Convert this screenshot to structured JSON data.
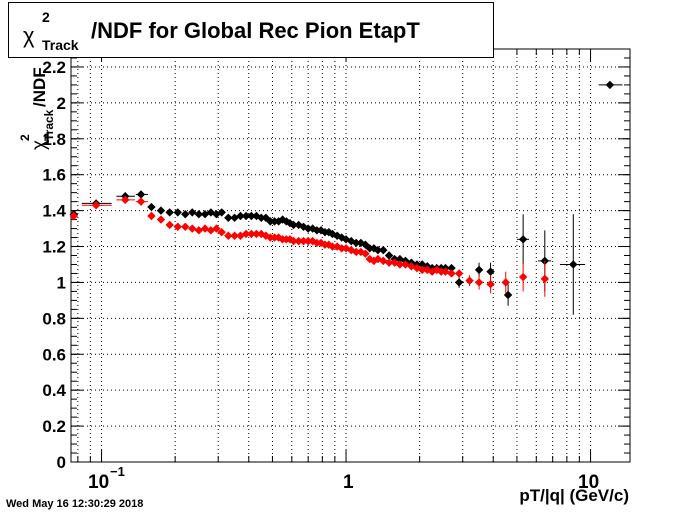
{
  "title": {
    "symbol": "χ",
    "superscript": "2",
    "subscript": "Track",
    "main": "/NDF for Global Rec Pion EtapT"
  },
  "timestamp": "Wed May 16 12:30:29 2018",
  "axes": {
    "x_label": "pT/|q| (GeV/c)",
    "y_label_symbol": "χ",
    "y_label_superscript": "2",
    "y_label_subscript": "Track",
    "y_label_rest": "/NDF",
    "x_tick_labels": [
      "10",
      "−1",
      "1",
      "10"
    ],
    "y_tick_labels": [
      "0",
      "0.2",
      "0.4",
      "0.6",
      "0.8",
      "1",
      "1.2",
      "1.4",
      "1.6",
      "1.8",
      "2",
      "2.2"
    ]
  },
  "colors": {
    "black_series": "#000000",
    "red_series": "#ff0000",
    "grid": "#000000"
  },
  "chart_data": {
    "type": "scatter",
    "x_scale": "log",
    "xlim": [
      0.075,
      14.5
    ],
    "ylim": [
      0,
      2.3
    ],
    "grid": true,
    "x_ticks": [
      0.1,
      1,
      10
    ],
    "y_ticks": [
      0,
      0.2,
      0.4,
      0.6,
      0.8,
      1,
      1.2,
      1.4,
      1.6,
      1.8,
      2,
      2.2
    ],
    "series": [
      {
        "color": "#000000",
        "points": [
          {
            "x": 0.077,
            "y": 1.38,
            "xerr": [
              0.075,
              0.08
            ],
            "yerr": 0.02
          },
          {
            "x": 0.095,
            "y": 1.44,
            "xerr": [
              0.083,
              0.11
            ],
            "yerr": 0.02
          },
          {
            "x": 0.125,
            "y": 1.48,
            "xerr": [
              0.115,
              0.137
            ],
            "yerr": 0.02
          },
          {
            "x": 0.145,
            "y": 1.49,
            "xerr": [
              0.138,
              0.155
            ],
            "yerr": 0.02
          },
          {
            "x": 0.16,
            "y": 1.42
          },
          {
            "x": 0.175,
            "y": 1.4
          },
          {
            "x": 0.19,
            "y": 1.39
          },
          {
            "x": 0.205,
            "y": 1.39
          },
          {
            "x": 0.22,
            "y": 1.38
          },
          {
            "x": 0.235,
            "y": 1.39
          },
          {
            "x": 0.25,
            "y": 1.38
          },
          {
            "x": 0.265,
            "y": 1.38
          },
          {
            "x": 0.28,
            "y": 1.39
          },
          {
            "x": 0.295,
            "y": 1.38
          },
          {
            "x": 0.31,
            "y": 1.39
          },
          {
            "x": 0.33,
            "y": 1.36
          },
          {
            "x": 0.35,
            "y": 1.36
          },
          {
            "x": 0.37,
            "y": 1.37
          },
          {
            "x": 0.39,
            "y": 1.37
          },
          {
            "x": 0.41,
            "y": 1.37
          },
          {
            "x": 0.43,
            "y": 1.37
          },
          {
            "x": 0.45,
            "y": 1.36
          },
          {
            "x": 0.47,
            "y": 1.36
          },
          {
            "x": 0.49,
            "y": 1.34
          },
          {
            "x": 0.51,
            "y": 1.34
          },
          {
            "x": 0.53,
            "y": 1.34
          },
          {
            "x": 0.55,
            "y": 1.35
          },
          {
            "x": 0.57,
            "y": 1.34
          },
          {
            "x": 0.59,
            "y": 1.33
          },
          {
            "x": 0.61,
            "y": 1.32
          },
          {
            "x": 0.64,
            "y": 1.32
          },
          {
            "x": 0.67,
            "y": 1.31
          },
          {
            "x": 0.7,
            "y": 1.3
          },
          {
            "x": 0.73,
            "y": 1.3
          },
          {
            "x": 0.76,
            "y": 1.29
          },
          {
            "x": 0.79,
            "y": 1.29
          },
          {
            "x": 0.82,
            "y": 1.28
          },
          {
            "x": 0.85,
            "y": 1.28
          },
          {
            "x": 0.88,
            "y": 1.27
          },
          {
            "x": 0.92,
            "y": 1.26
          },
          {
            "x": 0.96,
            "y": 1.25
          },
          {
            "x": 1.0,
            "y": 1.24
          },
          {
            "x": 1.05,
            "y": 1.23
          },
          {
            "x": 1.1,
            "y": 1.22
          },
          {
            "x": 1.15,
            "y": 1.22
          },
          {
            "x": 1.2,
            "y": 1.21
          },
          {
            "x": 1.25,
            "y": 1.19
          },
          {
            "x": 1.3,
            "y": 1.19
          },
          {
            "x": 1.35,
            "y": 1.18
          },
          {
            "x": 1.42,
            "y": 1.18
          },
          {
            "x": 1.5,
            "y": 1.15
          },
          {
            "x": 1.58,
            "y": 1.13
          },
          {
            "x": 1.66,
            "y": 1.13
          },
          {
            "x": 1.75,
            "y": 1.12
          },
          {
            "x": 1.85,
            "y": 1.11
          },
          {
            "x": 1.95,
            "y": 1.1
          },
          {
            "x": 2.05,
            "y": 1.1
          },
          {
            "x": 2.15,
            "y": 1.09
          },
          {
            "x": 2.25,
            "y": 1.08
          },
          {
            "x": 2.35,
            "y": 1.08
          },
          {
            "x": 2.45,
            "y": 1.08
          },
          {
            "x": 2.55,
            "y": 1.08
          },
          {
            "x": 2.7,
            "y": 1.08
          },
          {
            "x": 2.9,
            "y": 1.0,
            "yerr": 0.03
          },
          {
            "x": 3.5,
            "y": 1.07,
            "yerr": 0.04
          },
          {
            "x": 3.9,
            "y": 1.06,
            "yerr": 0.05
          },
          {
            "x": 4.6,
            "y": 0.93,
            "yerr": 0.06
          },
          {
            "x": 5.3,
            "y": 1.24,
            "xerr": [
              5.0,
              5.6
            ],
            "yerr": 0.14
          },
          {
            "x": 6.5,
            "y": 1.12,
            "xerr": [
              6.1,
              6.9
            ],
            "yerr": 0.17
          },
          {
            "x": 8.5,
            "y": 1.1,
            "xerr": [
              7.5,
              9.5
            ],
            "yerr": 0.28
          },
          {
            "x": 12.0,
            "y": 2.1,
            "xerr": [
              10.8,
              13.5
            ]
          }
        ]
      },
      {
        "color": "#ff0000",
        "points": [
          {
            "x": 0.077,
            "y": 1.37,
            "xerr": [
              0.075,
              0.08
            ],
            "yerr": 0.02
          },
          {
            "x": 0.095,
            "y": 1.43,
            "xerr": [
              0.083,
              0.11
            ],
            "yerr": 0.02
          },
          {
            "x": 0.125,
            "y": 1.46,
            "xerr": [
              0.115,
              0.137
            ],
            "yerr": 0.02
          },
          {
            "x": 0.145,
            "y": 1.45,
            "xerr": [
              0.138,
              0.155
            ],
            "yerr": 0.02
          },
          {
            "x": 0.16,
            "y": 1.37
          },
          {
            "x": 0.175,
            "y": 1.35
          },
          {
            "x": 0.19,
            "y": 1.32
          },
          {
            "x": 0.205,
            "y": 1.31
          },
          {
            "x": 0.22,
            "y": 1.31
          },
          {
            "x": 0.235,
            "y": 1.3
          },
          {
            "x": 0.25,
            "y": 1.29
          },
          {
            "x": 0.265,
            "y": 1.3
          },
          {
            "x": 0.28,
            "y": 1.29
          },
          {
            "x": 0.295,
            "y": 1.3
          },
          {
            "x": 0.31,
            "y": 1.28
          },
          {
            "x": 0.33,
            "y": 1.26
          },
          {
            "x": 0.35,
            "y": 1.26
          },
          {
            "x": 0.37,
            "y": 1.26
          },
          {
            "x": 0.39,
            "y": 1.27
          },
          {
            "x": 0.41,
            "y": 1.27
          },
          {
            "x": 0.43,
            "y": 1.27
          },
          {
            "x": 0.45,
            "y": 1.27
          },
          {
            "x": 0.47,
            "y": 1.26
          },
          {
            "x": 0.49,
            "y": 1.25
          },
          {
            "x": 0.51,
            "y": 1.25
          },
          {
            "x": 0.53,
            "y": 1.25
          },
          {
            "x": 0.55,
            "y": 1.24
          },
          {
            "x": 0.57,
            "y": 1.24
          },
          {
            "x": 0.59,
            "y": 1.24
          },
          {
            "x": 0.61,
            "y": 1.23
          },
          {
            "x": 0.64,
            "y": 1.23
          },
          {
            "x": 0.67,
            "y": 1.23
          },
          {
            "x": 0.7,
            "y": 1.23
          },
          {
            "x": 0.73,
            "y": 1.23
          },
          {
            "x": 0.76,
            "y": 1.22
          },
          {
            "x": 0.79,
            "y": 1.22
          },
          {
            "x": 0.82,
            "y": 1.21
          },
          {
            "x": 0.85,
            "y": 1.21
          },
          {
            "x": 0.88,
            "y": 1.2
          },
          {
            "x": 0.92,
            "y": 1.2
          },
          {
            "x": 0.96,
            "y": 1.19
          },
          {
            "x": 1.0,
            "y": 1.19
          },
          {
            "x": 1.05,
            "y": 1.18
          },
          {
            "x": 1.1,
            "y": 1.17
          },
          {
            "x": 1.15,
            "y": 1.17
          },
          {
            "x": 1.2,
            "y": 1.16
          },
          {
            "x": 1.25,
            "y": 1.13
          },
          {
            "x": 1.3,
            "y": 1.12
          },
          {
            "x": 1.35,
            "y": 1.13
          },
          {
            "x": 1.42,
            "y": 1.12
          },
          {
            "x": 1.5,
            "y": 1.11
          },
          {
            "x": 1.58,
            "y": 1.11
          },
          {
            "x": 1.66,
            "y": 1.1
          },
          {
            "x": 1.75,
            "y": 1.1
          },
          {
            "x": 1.85,
            "y": 1.09
          },
          {
            "x": 1.95,
            "y": 1.08
          },
          {
            "x": 2.05,
            "y": 1.07
          },
          {
            "x": 2.15,
            "y": 1.07
          },
          {
            "x": 2.25,
            "y": 1.06
          },
          {
            "x": 2.35,
            "y": 1.07
          },
          {
            "x": 2.45,
            "y": 1.06
          },
          {
            "x": 2.55,
            "y": 1.06
          },
          {
            "x": 2.7,
            "y": 1.05
          },
          {
            "x": 2.9,
            "y": 1.05
          },
          {
            "x": 3.2,
            "y": 1.01,
            "yerr": 0.03
          },
          {
            "x": 3.5,
            "y": 1.0,
            "yerr": 0.04
          },
          {
            "x": 3.9,
            "y": 0.99,
            "yerr": 0.05
          },
          {
            "x": 4.5,
            "y": 1.0,
            "yerr": 0.06
          },
          {
            "x": 5.3,
            "y": 1.03,
            "yerr": 0.08
          },
          {
            "x": 6.5,
            "y": 1.02,
            "yerr": 0.1
          }
        ]
      }
    ]
  }
}
